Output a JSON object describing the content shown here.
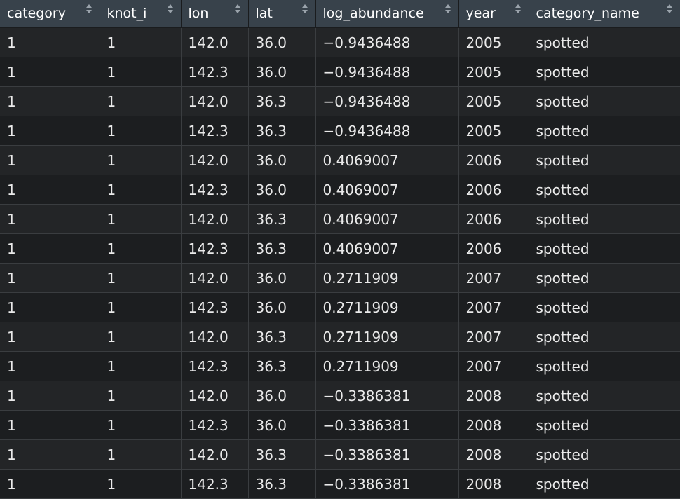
{
  "table": {
    "columns": [
      "category",
      "knot_i",
      "lon",
      "lat",
      "log_abundance",
      "year",
      "category_name"
    ],
    "rows": [
      [
        "1",
        "1",
        "142.0",
        "36.0",
        "−0.9436488",
        "2005",
        "spotted"
      ],
      [
        "1",
        "1",
        "142.3",
        "36.0",
        "−0.9436488",
        "2005",
        "spotted"
      ],
      [
        "1",
        "1",
        "142.0",
        "36.3",
        "−0.9436488",
        "2005",
        "spotted"
      ],
      [
        "1",
        "1",
        "142.3",
        "36.3",
        "−0.9436488",
        "2005",
        "spotted"
      ],
      [
        "1",
        "1",
        "142.0",
        "36.0",
        "0.4069007",
        "2006",
        "spotted"
      ],
      [
        "1",
        "1",
        "142.3",
        "36.0",
        "0.4069007",
        "2006",
        "spotted"
      ],
      [
        "1",
        "1",
        "142.0",
        "36.3",
        "0.4069007",
        "2006",
        "spotted"
      ],
      [
        "1",
        "1",
        "142.3",
        "36.3",
        "0.4069007",
        "2006",
        "spotted"
      ],
      [
        "1",
        "1",
        "142.0",
        "36.0",
        "0.2711909",
        "2007",
        "spotted"
      ],
      [
        "1",
        "1",
        "142.3",
        "36.0",
        "0.2711909",
        "2007",
        "spotted"
      ],
      [
        "1",
        "1",
        "142.0",
        "36.3",
        "0.2711909",
        "2007",
        "spotted"
      ],
      [
        "1",
        "1",
        "142.3",
        "36.3",
        "0.2711909",
        "2007",
        "spotted"
      ],
      [
        "1",
        "1",
        "142.0",
        "36.0",
        "−0.3386381",
        "2008",
        "spotted"
      ],
      [
        "1",
        "1",
        "142.3",
        "36.0",
        "−0.3386381",
        "2008",
        "spotted"
      ],
      [
        "1",
        "1",
        "142.0",
        "36.3",
        "−0.3386381",
        "2008",
        "spotted"
      ],
      [
        "1",
        "1",
        "142.3",
        "36.3",
        "−0.3386381",
        "2008",
        "spotted"
      ]
    ]
  },
  "icons": {
    "sort": "sort-arrows-icon"
  },
  "colors": {
    "header_bg": "#38424b",
    "header_text": "#ffffff",
    "row_bg_odd": "#232527",
    "row_bg_even": "#1c1e20",
    "cell_text": "#eaeaea"
  }
}
